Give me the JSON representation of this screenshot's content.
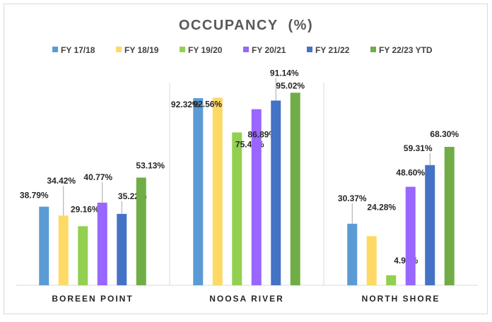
{
  "chart_data": {
    "type": "bar",
    "title": "OCCUPANCY  (%)",
    "categories": [
      "BOREEN POINT",
      "NOOSA RIVER",
      "NORTH SHORE"
    ],
    "series": [
      {
        "name": "FY 17/18",
        "color": "#5B9BD5",
        "values": [
          38.79,
          92.32,
          30.37
        ],
        "labels": [
          "38.79%",
          "92.32%",
          "30.37%"
        ]
      },
      {
        "name": "FY 18/19",
        "color": "#FFD966",
        "values": [
          34.42,
          92.56,
          24.28
        ],
        "labels": [
          "34.42%",
          "92.56%",
          "24.28%"
        ]
      },
      {
        "name": "FY 19/20",
        "color": "#92D050",
        "values": [
          29.16,
          75.43,
          4.94
        ],
        "labels": [
          "29.16%",
          "75.43%",
          "4.94%"
        ]
      },
      {
        "name": "FY 20/21",
        "color": "#9966FF",
        "values": [
          40.77,
          86.89,
          48.6
        ],
        "labels": [
          "40.77%",
          "86.89%",
          "48.60%"
        ]
      },
      {
        "name": "FY 21/22",
        "color": "#4472C4",
        "values": [
          35.22,
          91.14,
          59.31
        ],
        "labels": [
          "35.22%",
          "91.14%",
          "59.31%"
        ]
      },
      {
        "name": "FY 22/23 YTD",
        "color": "#70AD47",
        "values": [
          53.13,
          95.02,
          68.3
        ],
        "labels": [
          "53.13%",
          "95.02%",
          "68.30%"
        ]
      }
    ],
    "xlabel": "",
    "ylabel": "",
    "ylim": [
      0,
      100
    ],
    "grid": false,
    "legend": "top",
    "value_axis_visible": false
  }
}
